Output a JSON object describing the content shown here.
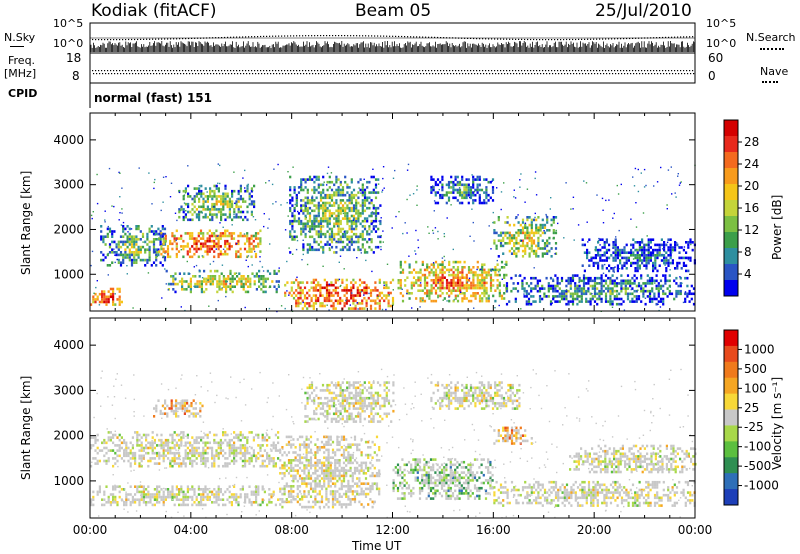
{
  "header": {
    "station": "Kodiak (fitACF)",
    "beam": "Beam 05",
    "date": "25/Jul/2010"
  },
  "top_panel": {
    "nsky_label": "N.Sky",
    "nsearch_label": "N.Search",
    "freq_label": "Freq.",
    "freq_unit": "[MHz]",
    "nave_label": "Nave",
    "cpid_label": "CPID",
    "cpid_value": "normal (fast) 151",
    "noise_ticks": [
      "10^5",
      "10^0"
    ],
    "freq_ticks": [
      "18",
      "8"
    ],
    "nave_ticks": [
      "60",
      "0"
    ]
  },
  "chart_data": [
    {
      "type": "heatmap",
      "panel": "power",
      "ylabel": "Slant Range [km]",
      "xlabel": "",
      "x_range_hours": [
        0,
        24
      ],
      "y_range_km": [
        180,
        4600
      ],
      "yticks": [
        "1000",
        "2000",
        "3000",
        "4000"
      ],
      "colorbar_label": "Power [dB]",
      "colorbar_ticks": [
        "28",
        "24",
        "20",
        "16",
        "12",
        "8",
        "4"
      ],
      "colorbar_colors": [
        "#0000ee",
        "#2a55c4",
        "#2e8fa0",
        "#3c9f4a",
        "#7cc043",
        "#c4d43a",
        "#f5c518",
        "#f89b1c",
        "#f46a1f",
        "#e8291c",
        "#d40000"
      ],
      "echo_regions": [
        {
          "t0": 0.0,
          "t1": 1.3,
          "r0": 300,
          "r1": 700,
          "level": 0.95
        },
        {
          "t0": 0.4,
          "t1": 3.0,
          "r0": 1200,
          "r1": 2100,
          "level": 0.45
        },
        {
          "t0": 2.7,
          "t1": 6.8,
          "r0": 1400,
          "r1": 2000,
          "level": 0.9
        },
        {
          "t0": 3.5,
          "t1": 6.5,
          "r0": 2200,
          "r1": 3000,
          "level": 0.5
        },
        {
          "t0": 3.0,
          "t1": 7.5,
          "r0": 600,
          "r1": 1100,
          "level": 0.6
        },
        {
          "t0": 7.7,
          "t1": 12.0,
          "r0": 250,
          "r1": 900,
          "level": 0.95
        },
        {
          "t0": 7.9,
          "t1": 11.5,
          "r0": 1500,
          "r1": 3200,
          "level": 0.5
        },
        {
          "t0": 12.2,
          "t1": 16.5,
          "r0": 400,
          "r1": 1300,
          "level": 0.8
        },
        {
          "t0": 13.5,
          "t1": 16.0,
          "r0": 2600,
          "r1": 3200,
          "level": 0.35
        },
        {
          "t0": 16.0,
          "t1": 18.5,
          "r0": 1400,
          "r1": 2300,
          "level": 0.6
        },
        {
          "t0": 16.5,
          "t1": 24.0,
          "r0": 350,
          "r1": 1000,
          "level": 0.35
        },
        {
          "t0": 19.5,
          "t1": 24.0,
          "r0": 1100,
          "r1": 1800,
          "level": 0.25
        }
      ]
    },
    {
      "type": "heatmap",
      "panel": "velocity",
      "ylabel": "Slant Range [km]",
      "xlabel": "Time UT",
      "x_range_hours": [
        0,
        24
      ],
      "y_range_km": [
        180,
        4600
      ],
      "yticks": [
        "1000",
        "2000",
        "3000",
        "4000"
      ],
      "xticks": [
        "00:00",
        "04:00",
        "08:00",
        "12:00",
        "16:00",
        "20:00",
        "00:00"
      ],
      "colorbar_label": "Velocity [m s⁻¹]",
      "colorbar_ticks": [
        "1000",
        "500",
        "100",
        "25",
        "-25",
        "-100",
        "-500",
        "-1000"
      ],
      "colorbar_colors": [
        "#1d3fb8",
        "#2e6fb8",
        "#2f8f52",
        "#5cbf3f",
        "#a8d84a",
        "#c8c8c8",
        "#f8d838",
        "#f5a623",
        "#f07a1c",
        "#e84a1c",
        "#e00000"
      ],
      "echo_regions": [
        {
          "t0": 0.0,
          "t1": 7.5,
          "r0": 1300,
          "r1": 2100,
          "level": 0.5
        },
        {
          "t0": 0.0,
          "t1": 7.5,
          "r0": 450,
          "r1": 900,
          "level": 0.5
        },
        {
          "t0": 2.5,
          "t1": 4.5,
          "r0": 2400,
          "r1": 2800,
          "level": 0.7
        },
        {
          "t0": 7.5,
          "t1": 11.5,
          "r0": 400,
          "r1": 2000,
          "level": 0.55
        },
        {
          "t0": 8.5,
          "t1": 12.0,
          "r0": 2300,
          "r1": 3200,
          "level": 0.5
        },
        {
          "t0": 12.0,
          "t1": 16.0,
          "r0": 600,
          "r1": 1500,
          "level": 0.3
        },
        {
          "t0": 13.5,
          "t1": 17.0,
          "r0": 2600,
          "r1": 3200,
          "level": 0.5
        },
        {
          "t0": 16.0,
          "t1": 17.5,
          "r0": 1800,
          "r1": 2200,
          "level": 0.75
        },
        {
          "t0": 16.0,
          "t1": 24.0,
          "r0": 450,
          "r1": 1000,
          "level": 0.5
        },
        {
          "t0": 19.0,
          "t1": 24.0,
          "r0": 1200,
          "r1": 1800,
          "level": 0.5
        }
      ]
    }
  ]
}
